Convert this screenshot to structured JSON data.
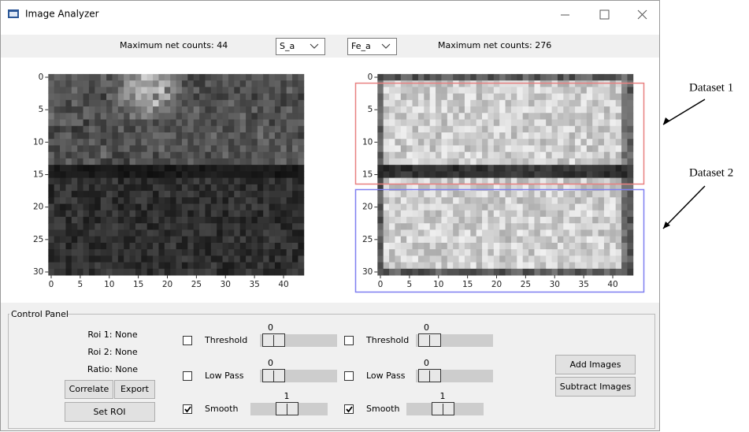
{
  "window": {
    "title": "Image Analyzer"
  },
  "toolbar": {
    "left_label": "Maximum net counts: 44",
    "left_select": "S_a",
    "right_select": "Fe_a",
    "right_label": "Maximum net counts: 276"
  },
  "plots": [
    {
      "xticks": [
        0,
        5,
        10,
        15,
        20,
        25,
        30,
        35,
        40
      ],
      "yticks": [
        0,
        5,
        10,
        15,
        20,
        25,
        30
      ]
    },
    {
      "xticks": [
        0,
        5,
        10,
        15,
        20,
        25,
        30,
        35,
        40
      ],
      "yticks": [
        0,
        5,
        10,
        15,
        20,
        25,
        30
      ]
    }
  ],
  "annotations": [
    "Dataset 1",
    "Dataset 2"
  ],
  "control_panel": {
    "title": "Control Panel",
    "roi1": "Roi 1: None",
    "roi2": "Roi 2: None",
    "ratio": "Ratio: None",
    "buttons": {
      "correlate": "Correlate",
      "export": "Export",
      "set_roi": "Set ROI",
      "add_images": "Add Images",
      "subtract_images": "Subtract Images"
    },
    "left_controls": [
      {
        "label": "Threshold",
        "value": 0,
        "checked": false
      },
      {
        "label": "Low Pass",
        "value": 0,
        "checked": false
      },
      {
        "label": "Smooth",
        "value": 1,
        "checked": true
      }
    ],
    "right_controls": [
      {
        "label": "Threshold",
        "value": 0,
        "checked": false
      },
      {
        "label": "Low Pass",
        "value": 0,
        "checked": false
      },
      {
        "label": "Smooth",
        "value": 1,
        "checked": true
      }
    ]
  }
}
